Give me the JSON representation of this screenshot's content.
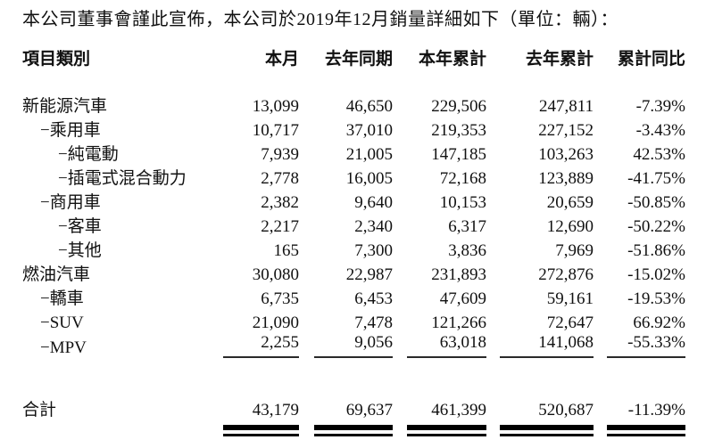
{
  "intro": "本公司董事會謹此宣佈，本公司於2019年12月銷量詳細如下（單位：輛）：",
  "table": {
    "columns": [
      "項目類別",
      "本月",
      "去年同期",
      "本年累計",
      "去年累計",
      "累計同比"
    ],
    "rows": [
      {
        "label": "新能源汽車",
        "indent": 0,
        "values": [
          "13,099",
          "46,650",
          "229,506",
          "247,811",
          "-7.39%"
        ]
      },
      {
        "label": "−乘用車",
        "indent": 1,
        "values": [
          "10,717",
          "37,010",
          "219,353",
          "227,152",
          "-3.43%"
        ]
      },
      {
        "label": "−純電動",
        "indent": 2,
        "values": [
          "7,939",
          "21,005",
          "147,185",
          "103,263",
          "42.53%"
        ]
      },
      {
        "label": "−插電式混合動力",
        "indent": 2,
        "values": [
          "2,778",
          "16,005",
          "72,168",
          "123,889",
          "-41.75%"
        ]
      },
      {
        "label": "−商用車",
        "indent": 1,
        "values": [
          "2,382",
          "9,640",
          "10,153",
          "20,659",
          "-50.85%"
        ]
      },
      {
        "label": "−客車",
        "indent": 2,
        "values": [
          "2,217",
          "2,340",
          "6,317",
          "12,690",
          "-50.22%"
        ]
      },
      {
        "label": "−其他",
        "indent": 2,
        "values": [
          "165",
          "7,300",
          "3,836",
          "7,969",
          "-51.86%"
        ]
      },
      {
        "label": "燃油汽車",
        "indent": 0,
        "values": [
          "30,080",
          "22,987",
          "231,893",
          "272,876",
          "-15.02%"
        ]
      },
      {
        "label": "−轎車",
        "indent": 1,
        "values": [
          "6,735",
          "6,453",
          "47,609",
          "59,161",
          "-19.53%"
        ]
      },
      {
        "label": "−SUV",
        "indent": 1,
        "values": [
          "21,090",
          "7,478",
          "121,266",
          "72,647",
          "66.92%"
        ]
      },
      {
        "label": "−MPV",
        "indent": 1,
        "values": [
          "2,255",
          "9,056",
          "63,018",
          "141,068",
          "-55.33%"
        ]
      }
    ],
    "total": {
      "label": "合計",
      "values": [
        "43,179",
        "69,637",
        "461,399",
        "520,687",
        "-11.39%"
      ]
    }
  }
}
